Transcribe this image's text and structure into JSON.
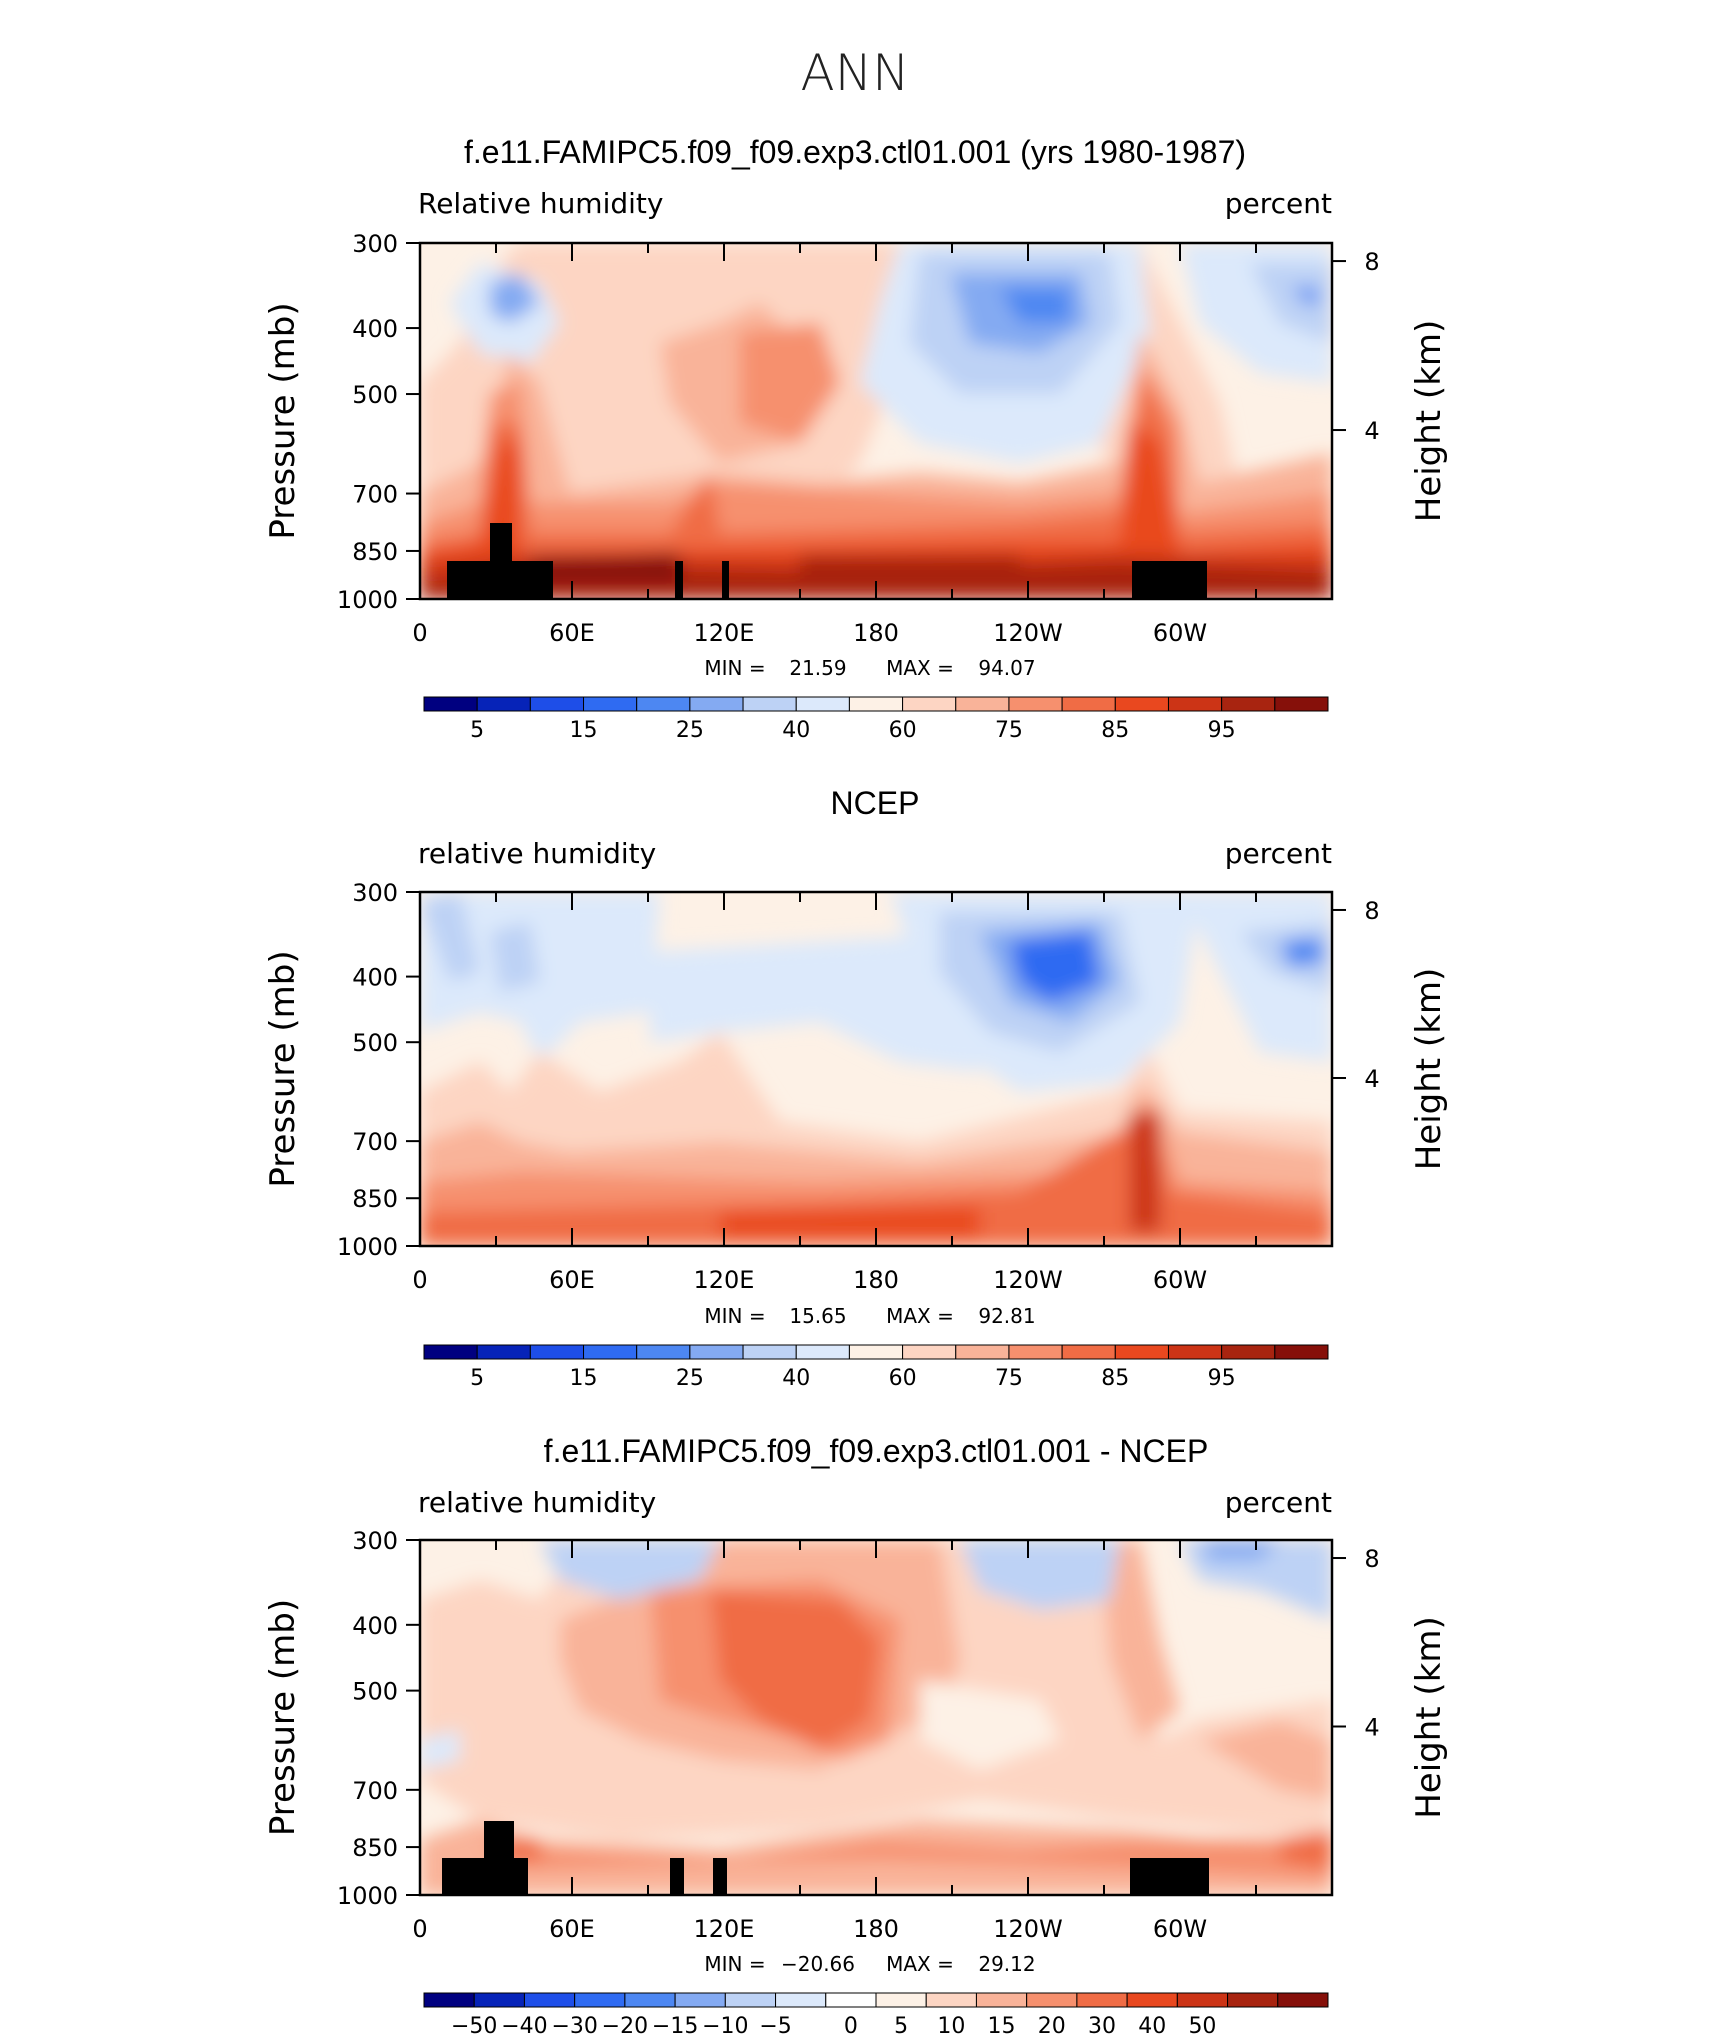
{
  "main_title": "ANN",
  "colors": {
    "rh_scale": [
      "#000080",
      "#0623b8",
      "#1e4ee8",
      "#2f6bf2",
      "#4d87f2",
      "#84aaf2",
      "#bdd2f5",
      "#dce9fb",
      "#fdf1e6",
      "#fdd5c3",
      "#f9b399",
      "#f6906e",
      "#f06c45",
      "#e9481f",
      "#cc3416",
      "#a82410",
      "#86100a"
    ],
    "diff_scale": [
      "#000080",
      "#0623b8",
      "#1e4ee8",
      "#2f6bf2",
      "#4d87f2",
      "#84aaf2",
      "#bdd2f5",
      "#dce9fb",
      "#ffffff",
      "#fdf1e6",
      "#fdd5c3",
      "#f9b399",
      "#f6906e",
      "#f06c45",
      "#e9481f",
      "#cc3416",
      "#a82410",
      "#86100a"
    ]
  },
  "chart_data": [
    {
      "type": "heatmap",
      "title": "f.e11.FAMIPC5.f09_f09.exp3.ctl01.001 (yrs 1980-1987)",
      "left_label": "Relative humidity",
      "right_label": "percent",
      "ylabel": "Pressure (mb)",
      "ylabel_right": "Height (km)",
      "x_ticks": [
        "0",
        "60E",
        "120E",
        "180",
        "120W",
        "60W"
      ],
      "y_ticks": [
        "300",
        "400",
        "500",
        "700",
        "850",
        "1000"
      ],
      "y_ticks_right": [
        "8",
        "4"
      ],
      "min_label": "MIN =",
      "min_value": "21.59",
      "max_label": "MAX =",
      "max_value": "94.07",
      "colorbar_labels": [
        "5",
        "15",
        "25",
        "40",
        "60",
        "75",
        "85",
        "95"
      ]
    },
    {
      "type": "heatmap",
      "title": "NCEP",
      "left_label": "relative humidity",
      "right_label": "percent",
      "ylabel": "Pressure (mb)",
      "ylabel_right": "Height (km)",
      "x_ticks": [
        "0",
        "60E",
        "120E",
        "180",
        "120W",
        "60W"
      ],
      "y_ticks": [
        "300",
        "400",
        "500",
        "700",
        "850",
        "1000"
      ],
      "y_ticks_right": [
        "8",
        "4"
      ],
      "min_label": "MIN =",
      "min_value": "15.65",
      "max_label": "MAX =",
      "max_value": "92.81",
      "colorbar_labels": [
        "5",
        "15",
        "25",
        "40",
        "60",
        "75",
        "85",
        "95"
      ]
    },
    {
      "type": "heatmap",
      "title": "f.e11.FAMIPC5.f09_f09.exp3.ctl01.001 - NCEP",
      "left_label": "relative humidity",
      "right_label": "percent",
      "ylabel": "Pressure (mb)",
      "ylabel_right": "Height (km)",
      "x_ticks": [
        "0",
        "60E",
        "120E",
        "180",
        "120W",
        "60W"
      ],
      "y_ticks": [
        "300",
        "400",
        "500",
        "700",
        "850",
        "1000"
      ],
      "y_ticks_right": [
        "8",
        "4"
      ],
      "min_label": "MIN =",
      "min_value": "−20.66",
      "max_label": "MAX =",
      "max_value": "29.12",
      "colorbar_labels": [
        "−50",
        "−40",
        "−30",
        "−20",
        "−15",
        "−10",
        "−5",
        "0",
        "5",
        "10",
        "15",
        "20",
        "30",
        "40",
        "50"
      ]
    }
  ]
}
